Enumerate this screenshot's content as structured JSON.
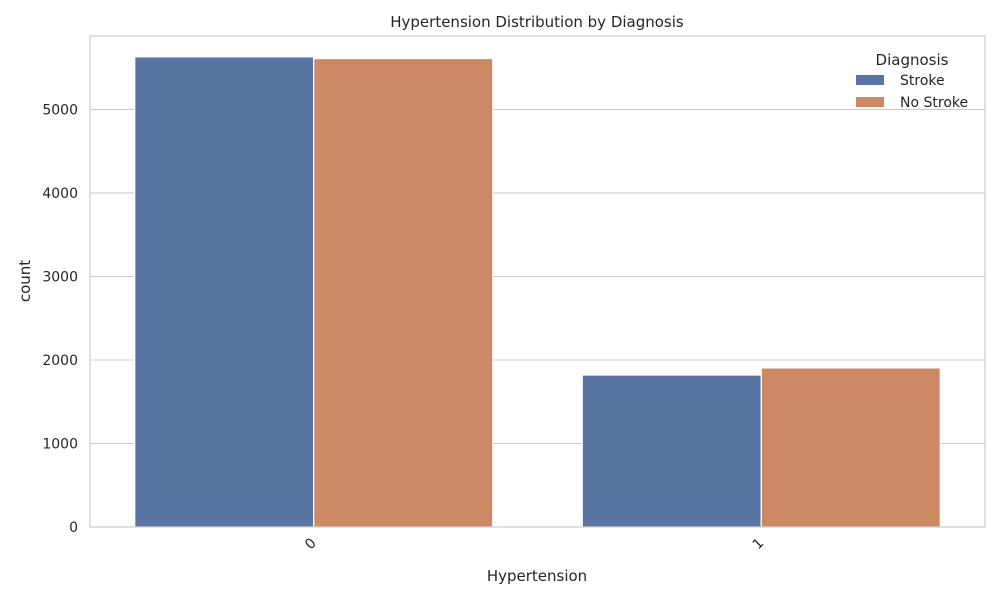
{
  "chart_data": {
    "type": "bar",
    "title": "Hypertension Distribution by Diagnosis",
    "xlabel": "Hypertension",
    "ylabel": "count",
    "categories": [
      "0",
      "1"
    ],
    "series": [
      {
        "name": "Stroke",
        "values": [
          5630,
          1820
        ],
        "color": "#5875a4"
      },
      {
        "name": "No Stroke",
        "values": [
          5610,
          1905
        ],
        "color": "#cc8963"
      }
    ],
    "ylim": [
      0,
      5880
    ],
    "yticks": [
      0,
      1000,
      2000,
      3000,
      4000,
      5000
    ],
    "grid": true,
    "legend": {
      "title": "Diagnosis",
      "placement": "top-right"
    }
  }
}
